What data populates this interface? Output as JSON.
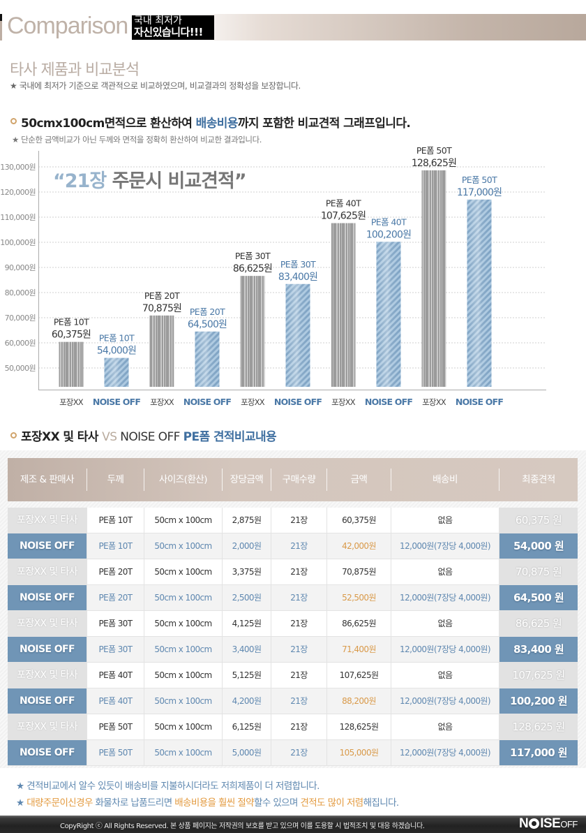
{
  "header": {
    "title": "Comparison",
    "badge_line1": "국내 최저가",
    "badge_line2": "자신있습니다!!!",
    "subtitle": "타사 제품과 비교분석",
    "note": "★ 국내에 최저가 기준으로 객관적으로 비교하였으며, 비교결과의 정확성을 보장합니다."
  },
  "section1": {
    "title_pre": "50cmx100cm면적으로 환산하여 ",
    "title_hl": "배송비용",
    "title_post": "까지 포함한 비교견적 그래프입니다.",
    "note": "★ 단순한 금액비교가 아닌 두께와 면적을 정확히 환산하여 비교한 결과입니다.",
    "quote_open": "“",
    "quote_num": "21장",
    "quote_text": " 주문시 비교견적”"
  },
  "chart_data": {
    "type": "bar",
    "title": "21장 주문시 비교견적",
    "xlabel": "",
    "ylabel": "",
    "ylim": [
      42500,
      132000
    ],
    "yticks": [
      50000,
      60000,
      70000,
      80000,
      90000,
      100000,
      110000,
      120000,
      130000
    ],
    "ytick_labels": [
      "50,000원",
      "60,000원",
      "70,000원",
      "80,000원",
      "90,000원",
      "100,000원",
      "110,000원",
      "120,000원",
      "130,000원"
    ],
    "grid": true,
    "categories": [
      "포장XX",
      "NOISE OFF",
      "포장XX",
      "NOISE OFF",
      "포장XX",
      "NOISE OFF",
      "포장XX",
      "NOISE OFF",
      "포장XX",
      "NOISE OFF"
    ],
    "series": [
      {
        "name": "포장XX",
        "color": "#9a9a9a",
        "values": [
          60375,
          70875,
          86625,
          107625,
          128625
        ]
      },
      {
        "name": "NOISE OFF",
        "color": "#8fb2d0",
        "values": [
          54000,
          64500,
          83400,
          100200,
          117000
        ]
      }
    ],
    "bars": [
      {
        "group": "포장XX",
        "label1": "PE폼 10T",
        "label2": "60,375원",
        "value": 60375
      },
      {
        "group": "NOISE OFF",
        "label1": "PE폼 10T",
        "label2": "54,000원",
        "value": 54000
      },
      {
        "group": "포장XX",
        "label1": "PE폼 20T",
        "label2": "70,875원",
        "value": 70875
      },
      {
        "group": "NOISE OFF",
        "label1": "PE폼 20T",
        "label2": "64,500원",
        "value": 64500
      },
      {
        "group": "포장XX",
        "label1": "PE폼 30T",
        "label2": "86,625원",
        "value": 86625
      },
      {
        "group": "NOISE OFF",
        "label1": "PE폼 30T",
        "label2": "83,400원",
        "value": 83400
      },
      {
        "group": "포장XX",
        "label1": "PE폼 40T",
        "label2": "107,625원",
        "value": 107625
      },
      {
        "group": "NOISE OFF",
        "label1": "PE폼 40T",
        "label2": "100,200원",
        "value": 100200
      },
      {
        "group": "포장XX",
        "label1": "PE폼 50T",
        "label2": "128,625원",
        "value": 128625
      },
      {
        "group": "NOISE OFF",
        "label1": "PE폼 50T",
        "label2": "117,000원",
        "value": 117000
      }
    ]
  },
  "section2": {
    "title_a": "포장XX 및 타사 ",
    "title_vs": "VS",
    "title_b": " NOISE OFF ",
    "title_c": "PE폼 견적비교내용"
  },
  "table": {
    "headers": [
      "제조 & 판매사",
      "두께",
      "사이즈(환산)",
      "장당금액",
      "구매수량",
      "금액",
      "배송비",
      "최종견적"
    ],
    "rows": [
      {
        "type": "other",
        "cells": [
          "포장XX 및 타사",
          "PE폼 10T",
          "50cm x 100cm",
          "2,875원",
          "21장",
          "60,375원",
          "없음",
          "60,375 원"
        ]
      },
      {
        "type": "noise",
        "cells": [
          "NOISE OFF",
          "PE폼 10T",
          "50cm x 100cm",
          "2,000원",
          "21장",
          "42,000원",
          "12,000원(7장당 4,000원)",
          "54,000 원"
        ]
      },
      {
        "type": "other",
        "cells": [
          "포장XX 및 타사",
          "PE폼 20T",
          "50cm x 100cm",
          "3,375원",
          "21장",
          "70,875원",
          "없음",
          "70,875 원"
        ]
      },
      {
        "type": "noise",
        "cells": [
          "NOISE OFF",
          "PE폼 20T",
          "50cm x 100cm",
          "2,500원",
          "21장",
          "52,500원",
          "12,000원(7장당 4,000원)",
          "64,500 원"
        ]
      },
      {
        "type": "other",
        "cells": [
          "포장XX 및 타사",
          "PE폼 30T",
          "50cm x 100cm",
          "4,125원",
          "21장",
          "86,625원",
          "없음",
          "86,625 원"
        ]
      },
      {
        "type": "noise",
        "cells": [
          "NOISE OFF",
          "PE폼 30T",
          "50cm x 100cm",
          "3,400원",
          "21장",
          "71,400원",
          "12,000원(7장당 4,000원)",
          "83,400 원"
        ]
      },
      {
        "type": "other",
        "cells": [
          "포장XX 및 타사",
          "PE폼 40T",
          "50cm x 100cm",
          "5,125원",
          "21장",
          "107,625원",
          "없음",
          "107,625 원"
        ]
      },
      {
        "type": "noise",
        "cells": [
          "NOISE OFF",
          "PE폼 40T",
          "50cm x 100cm",
          "4,200원",
          "21장",
          "88,200원",
          "12,000원(7장당 4,000원)",
          "100,200 원"
        ]
      },
      {
        "type": "other",
        "cells": [
          "포장XX 및 타사",
          "PE폼 50T",
          "50cm x 100cm",
          "6,125원",
          "21장",
          "128,625원",
          "없음",
          "128,625 원"
        ]
      },
      {
        "type": "noise",
        "cells": [
          "NOISE OFF",
          "PE폼 50T",
          "50cm x 100cm",
          "5,000원",
          "21장",
          "105,000원",
          "12,000원(7장당 4,000원)",
          "117,000 원"
        ]
      }
    ]
  },
  "footnotes": {
    "line1": "★ 견적비교에서 알수 있듯이 배송비를 지불하시더라도 저희제품이 더 저렴합니다.",
    "line2_star": "★ ",
    "line2_a": "대량주문이신경우",
    "line2_b": " 화물차로 납품드리면 ",
    "line2_c": "배송비용을 훨씬 절약",
    "line2_d": "할수 있으며 ",
    "line2_e": "견적도 많이 저렴",
    "line2_f": "해집니다."
  },
  "footer": {
    "copyright": "CopyRight ⓒ All Rights Reserved. 본 상품 페이지는 저작권의 보호를 받고 있으며 이를 도용할 시 법적조치 및 대응 하겠습니다.",
    "logo_n": "N",
    "logo_ise": "ISE",
    "logo_off": "OFF"
  },
  "colors": {
    "accent_blue": "#3f6fa0",
    "noise_row": "#7095b6",
    "orange": "#e39a3f",
    "beige": "#c4b5aa"
  }
}
